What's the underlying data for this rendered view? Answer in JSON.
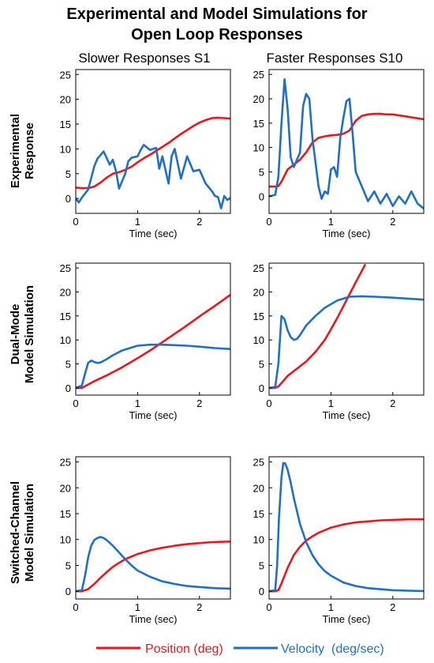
{
  "figure": {
    "title_lines": [
      "Experimental and Model Simulations for",
      "Open Loop Responses"
    ],
    "columns": [
      "Slower Responses S1",
      "Faster Responses S10"
    ],
    "rows": [
      [
        "Experimental",
        "Response"
      ],
      [
        "Dual-Mode",
        "Model Simulation"
      ],
      [
        "Switched-Channel",
        "Model Simulation"
      ]
    ]
  },
  "legend": [
    {
      "label": "Position (deg)",
      "color": "#e8171f"
    },
    {
      "label": "Velocity  (deg/sec)",
      "color": "#1f6fc5"
    }
  ],
  "chart_data": [
    {
      "type": "line",
      "row": 0,
      "col": 0,
      "xlabel": "Time (sec)",
      "ylabel": "",
      "xlim": [
        0,
        2.5
      ],
      "ylim": [
        -3,
        26
      ],
      "xticks": [
        0,
        1,
        2
      ],
      "yticks": [
        0,
        5,
        10,
        15,
        20,
        25
      ],
      "series": [
        {
          "name": "Position (deg)",
          "color": "#e8171f",
          "x": [
            0,
            0.1,
            0.2,
            0.3,
            0.4,
            0.5,
            0.6,
            0.7,
            0.8,
            0.9,
            1.0,
            1.1,
            1.2,
            1.3,
            1.4,
            1.5,
            1.6,
            1.7,
            1.8,
            1.9,
            2.0,
            2.1,
            2.2,
            2.3,
            2.4,
            2.5
          ],
          "y": [
            2.2,
            2.1,
            2.1,
            2.4,
            3.2,
            4.2,
            5.0,
            5.3,
            5.8,
            6.4,
            7.3,
            8.1,
            8.8,
            9.6,
            10.4,
            11.2,
            12.1,
            13.0,
            13.8,
            14.6,
            15.3,
            15.8,
            16.2,
            16.3,
            16.2,
            16.1
          ]
        },
        {
          "name": "Velocity  (deg/sec)",
          "color": "#1f6fc5",
          "x": [
            0,
            0.05,
            0.1,
            0.2,
            0.3,
            0.35,
            0.45,
            0.55,
            0.6,
            0.65,
            0.7,
            0.8,
            0.85,
            0.9,
            1.0,
            1.05,
            1.1,
            1.2,
            1.3,
            1.35,
            1.4,
            1.5,
            1.55,
            1.6,
            1.7,
            1.8,
            1.9,
            2.0,
            2.1,
            2.2,
            2.25,
            2.3,
            2.35,
            2.4,
            2.45,
            2.5
          ],
          "y": [
            0,
            -0.8,
            0.2,
            1.8,
            6.5,
            8.0,
            9.5,
            6.8,
            7.8,
            5.5,
            2.0,
            5.0,
            7.5,
            8.2,
            8.5,
            9.8,
            10.8,
            9.8,
            10.2,
            6.0,
            8.5,
            3.0,
            8.5,
            10.0,
            4.0,
            8.5,
            5.5,
            5.8,
            3.0,
            1.5,
            0.5,
            0.3,
            -2.0,
            0.5,
            -0.3,
            0.1
          ]
        }
      ]
    },
    {
      "type": "line",
      "row": 0,
      "col": 1,
      "xlabel": "Time (sec)",
      "ylabel": "",
      "xlim": [
        0,
        2.5
      ],
      "ylim": [
        -3.5,
        26
      ],
      "xticks": [
        0,
        1,
        2
      ],
      "yticks": [
        0,
        5,
        10,
        15,
        20,
        25
      ],
      "series": [
        {
          "name": "Position (deg)",
          "color": "#e8171f",
          "x": [
            0,
            0.1,
            0.15,
            0.2,
            0.3,
            0.4,
            0.5,
            0.6,
            0.7,
            0.8,
            0.9,
            1.0,
            1.1,
            1.2,
            1.3,
            1.4,
            1.5,
            1.6,
            1.7,
            1.8,
            1.9,
            2.0,
            2.1,
            2.2,
            2.3,
            2.4,
            2.5
          ],
          "y": [
            2.0,
            2.0,
            2.1,
            3.0,
            5.5,
            6.5,
            7.5,
            9.0,
            11.0,
            12.0,
            12.3,
            12.5,
            12.6,
            12.8,
            13.5,
            15.5,
            16.5,
            16.8,
            16.9,
            16.9,
            16.8,
            16.8,
            16.6,
            16.4,
            16.2,
            16.0,
            15.8
          ]
        },
        {
          "name": "Velocity  (deg/sec)",
          "color": "#1f6fc5",
          "x": [
            0,
            0.1,
            0.15,
            0.2,
            0.25,
            0.3,
            0.35,
            0.4,
            0.5,
            0.55,
            0.6,
            0.65,
            0.7,
            0.8,
            0.85,
            0.9,
            0.95,
            1.0,
            1.05,
            1.1,
            1.15,
            1.2,
            1.25,
            1.3,
            1.35,
            1.4,
            1.5,
            1.6,
            1.7,
            1.8,
            1.9,
            2.0,
            2.1,
            2.2,
            2.3,
            2.4,
            2.5
          ],
          "y": [
            0,
            0.3,
            4.0,
            15.0,
            24.0,
            18.0,
            8.0,
            6.0,
            9.0,
            18.5,
            21.0,
            20.0,
            12.0,
            2.0,
            -0.5,
            1.0,
            0.5,
            5.5,
            6.0,
            4.0,
            12.0,
            16.0,
            19.5,
            20.0,
            13.0,
            5.0,
            2.0,
            -1.0,
            1.0,
            -1.5,
            0.5,
            -2.0,
            0.0,
            -1.5,
            1.0,
            -1.5,
            -2.5
          ]
        }
      ]
    },
    {
      "type": "line",
      "row": 1,
      "col": 0,
      "xlabel": "Time (sec)",
      "ylabel": "",
      "xlim": [
        0,
        2.5
      ],
      "ylim": [
        -1.5,
        26
      ],
      "xticks": [
        0,
        1,
        2
      ],
      "yticks": [
        0,
        5,
        10,
        15,
        20,
        25
      ],
      "series": [
        {
          "name": "Position (deg)",
          "color": "#e8171f",
          "x": [
            0,
            0.1,
            0.2,
            0.3,
            0.5,
            0.75,
            1.0,
            1.25,
            1.5,
            1.75,
            2.0,
            2.25,
            2.5
          ],
          "y": [
            0,
            0,
            0.7,
            1.4,
            2.6,
            4.3,
            6.2,
            8.2,
            10.4,
            12.6,
            14.9,
            17.1,
            19.4
          ]
        },
        {
          "name": "Velocity  (deg/sec)",
          "color": "#1f6fc5",
          "x": [
            0,
            0.1,
            0.15,
            0.2,
            0.25,
            0.3,
            0.35,
            0.4,
            0.5,
            0.6,
            0.75,
            1.0,
            1.2,
            1.4,
            1.6,
            1.8,
            2.0,
            2.25,
            2.5
          ],
          "y": [
            0,
            0.5,
            3.0,
            5.2,
            5.7,
            5.4,
            5.2,
            5.3,
            6.0,
            6.8,
            7.8,
            8.8,
            9.0,
            9.0,
            8.9,
            8.8,
            8.6,
            8.3,
            8.1
          ]
        }
      ]
    },
    {
      "type": "line",
      "row": 1,
      "col": 1,
      "xlabel": "Time (sec)",
      "ylabel": "",
      "xlim": [
        0,
        2.5
      ],
      "ylim": [
        -1.5,
        26
      ],
      "xticks": [
        0,
        1,
        2
      ],
      "yticks": [
        0,
        5,
        10,
        15,
        20,
        25
      ],
      "series": [
        {
          "name": "Position (deg)",
          "color": "#e8171f",
          "x": [
            0,
            0.1,
            0.15,
            0.2,
            0.3,
            0.45,
            0.6,
            0.75,
            0.9,
            1.0,
            1.1,
            1.2,
            1.3,
            1.4,
            1.5,
            1.55
          ],
          "y": [
            0,
            0,
            0.3,
            1.0,
            2.5,
            4.0,
            5.5,
            7.5,
            10.0,
            12.2,
            14.5,
            17.0,
            19.5,
            22.0,
            24.4,
            25.6
          ]
        },
        {
          "name": "Velocity  (deg/sec)",
          "color": "#1f6fc5",
          "x": [
            0,
            0.1,
            0.15,
            0.2,
            0.25,
            0.3,
            0.35,
            0.4,
            0.45,
            0.5,
            0.6,
            0.75,
            0.9,
            1.1,
            1.3,
            1.5,
            1.7,
            2.0,
            2.25,
            2.5
          ],
          "y": [
            0,
            0.2,
            5.0,
            15.0,
            14.3,
            12.0,
            10.6,
            10.0,
            10.2,
            11.0,
            13.0,
            15.0,
            16.7,
            18.2,
            19.0,
            19.1,
            19.0,
            18.8,
            18.6,
            18.4
          ]
        }
      ]
    },
    {
      "type": "line",
      "row": 2,
      "col": 0,
      "xlabel": "Time (sec)",
      "ylabel": "",
      "xlim": [
        0,
        2.5
      ],
      "ylim": [
        -1.5,
        26
      ],
      "xticks": [
        0,
        1,
        2
      ],
      "yticks": [
        0,
        5,
        10,
        15,
        20,
        25
      ],
      "series": [
        {
          "name": "Position (deg)",
          "color": "#e8171f",
          "x": [
            0,
            0.1,
            0.2,
            0.3,
            0.4,
            0.5,
            0.6,
            0.7,
            0.8,
            0.9,
            1.0,
            1.2,
            1.4,
            1.6,
            1.8,
            2.0,
            2.2,
            2.5
          ],
          "y": [
            0,
            0,
            0.4,
            1.4,
            2.6,
            3.7,
            4.7,
            5.5,
            6.2,
            6.7,
            7.2,
            7.9,
            8.4,
            8.8,
            9.1,
            9.3,
            9.5,
            9.6
          ]
        },
        {
          "name": "Velocity  (deg/sec)",
          "color": "#1f6fc5",
          "x": [
            0,
            0.1,
            0.15,
            0.2,
            0.25,
            0.3,
            0.35,
            0.4,
            0.45,
            0.5,
            0.6,
            0.7,
            0.8,
            0.9,
            1.0,
            1.2,
            1.4,
            1.6,
            1.8,
            2.0,
            2.25,
            2.5
          ],
          "y": [
            0,
            0.2,
            3.0,
            6.5,
            8.8,
            9.9,
            10.3,
            10.5,
            10.3,
            9.9,
            8.8,
            7.5,
            6.2,
            5.0,
            4.0,
            2.8,
            1.9,
            1.4,
            1.0,
            0.8,
            0.6,
            0.5
          ]
        }
      ]
    },
    {
      "type": "line",
      "row": 2,
      "col": 1,
      "xlabel": "Time (sec)",
      "ylabel": "",
      "xlim": [
        0,
        2.5
      ],
      "ylim": [
        -1.5,
        26
      ],
      "xticks": [
        0,
        1,
        2
      ],
      "yticks": [
        0,
        5,
        10,
        15,
        20,
        25
      ],
      "series": [
        {
          "name": "Position (deg)",
          "color": "#e8171f",
          "x": [
            0,
            0.1,
            0.15,
            0.2,
            0.3,
            0.4,
            0.5,
            0.6,
            0.7,
            0.8,
            0.9,
            1.0,
            1.2,
            1.4,
            1.6,
            1.8,
            2.0,
            2.25,
            2.5
          ],
          "y": [
            0,
            0,
            0.2,
            1.5,
            4.5,
            7.0,
            8.6,
            9.8,
            10.6,
            11.3,
            11.8,
            12.3,
            12.9,
            13.3,
            13.5,
            13.7,
            13.8,
            13.9,
            13.9
          ]
        },
        {
          "name": "Velocity  (deg/sec)",
          "color": "#1f6fc5",
          "x": [
            0,
            0.1,
            0.13,
            0.16,
            0.2,
            0.23,
            0.26,
            0.3,
            0.35,
            0.4,
            0.5,
            0.6,
            0.7,
            0.8,
            0.9,
            1.0,
            1.2,
            1.4,
            1.6,
            1.8,
            2.0,
            2.25,
            2.5
          ],
          "y": [
            0,
            0.2,
            5.0,
            14.0,
            22.0,
            24.8,
            24.7,
            23.5,
            21.0,
            18.0,
            13.0,
            9.5,
            7.0,
            5.2,
            3.9,
            3.0,
            1.7,
            1.0,
            0.6,
            0.4,
            0.2,
            0.1,
            0.05
          ]
        }
      ]
    }
  ]
}
